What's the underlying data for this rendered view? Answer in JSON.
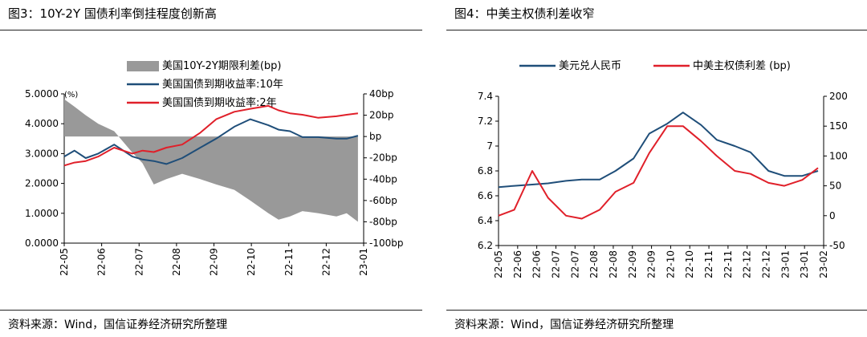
{
  "figures": [
    {
      "title": "图3：10Y-2Y 国债利率倒挂程度创新高",
      "source": "资料来源：Wind，国信证券经济研究所整理"
    },
    {
      "title": "图4：中美主权债利差收窄",
      "source": "资料来源：Wind，国信证券经济研究所整理"
    }
  ],
  "chart_data": [
    {
      "type": "line",
      "title": "图3：10Y-2Y 国债利率倒挂程度创新高",
      "x_categories": [
        "22-05",
        "22-06",
        "22-07",
        "22-08",
        "22-09",
        "22-10",
        "22-11",
        "22-12",
        "23-01"
      ],
      "y_left": {
        "unit": "(%)",
        "range": [
          0,
          5
        ],
        "ticks": [
          "5.0000",
          "4.0000",
          "3.0000",
          "2.0000",
          "1.0000",
          "0.0000"
        ]
      },
      "y_right": {
        "range": [
          -100,
          40
        ],
        "ticks": [
          "40bp",
          "20bp",
          "bp",
          "-20bp",
          "-40bp",
          "-60bp",
          "-80bp",
          "-100bp"
        ]
      },
      "legend_position": "top-center",
      "grid": false,
      "colors": {
        "spread": "#999999",
        "y10": "#1f4e79",
        "y2": "#e0202a"
      },
      "series": [
        {
          "name": "美国10Y-2Y期限利差(bp)",
          "type": "area",
          "axis": "right",
          "x": [
            "22-05",
            "22-05-10",
            "22-05-20",
            "22-06",
            "22-06-15",
            "22-07",
            "22-07-10",
            "22-07-20",
            "22-08",
            "22-08-15",
            "22-09",
            "22-09-15",
            "22-10",
            "22-10-15",
            "22-11",
            "22-11-10",
            "22-11-20",
            "22-12",
            "22-12-15",
            "23-01",
            "23-01-10",
            "23-01-20"
          ],
          "values": [
            35,
            28,
            20,
            12,
            5,
            -15,
            -25,
            -45,
            -40,
            -35,
            -40,
            -45,
            -50,
            -60,
            -72,
            -78,
            -75,
            -70,
            -72,
            -75,
            -72,
            -80
          ]
        },
        {
          "name": "美国国债到期收益率:10年",
          "type": "line",
          "axis": "left",
          "x": [
            "22-05",
            "22-05-10",
            "22-05-20",
            "22-06",
            "22-06-15",
            "22-07",
            "22-07-10",
            "22-07-20",
            "22-08",
            "22-08-15",
            "22-09",
            "22-09-15",
            "22-10",
            "22-10-15",
            "22-11",
            "22-11-10",
            "22-11-20",
            "22-12",
            "22-12-15",
            "23-01",
            "23-01-10",
            "23-01-20"
          ],
          "values": [
            2.9,
            3.1,
            2.85,
            3.0,
            3.3,
            2.9,
            2.8,
            2.75,
            2.65,
            2.85,
            3.2,
            3.5,
            3.9,
            4.15,
            3.95,
            3.8,
            3.75,
            3.55,
            3.55,
            3.5,
            3.5,
            3.6
          ]
        },
        {
          "name": "美国国债到期收益率:2年",
          "type": "line",
          "axis": "left",
          "x": [
            "22-05",
            "22-05-10",
            "22-05-20",
            "22-06",
            "22-06-15",
            "22-07",
            "22-07-10",
            "22-07-20",
            "22-08",
            "22-08-15",
            "22-09",
            "22-09-15",
            "22-10",
            "22-10-15",
            "22-11",
            "22-11-10",
            "22-11-20",
            "22-12",
            "22-12-15",
            "23-01",
            "23-01-10",
            "23-01-20"
          ],
          "values": [
            2.6,
            2.7,
            2.75,
            2.9,
            3.2,
            3.0,
            3.1,
            3.05,
            3.2,
            3.3,
            3.7,
            4.15,
            4.4,
            4.5,
            4.6,
            4.45,
            4.35,
            4.3,
            4.2,
            4.25,
            4.3,
            4.35
          ]
        }
      ]
    },
    {
      "type": "line",
      "title": "图4：中美主权债利差收窄",
      "x_categories": [
        "22-05",
        "22-06",
        "22-06",
        "22-07",
        "22-07",
        "22-08",
        "22-08",
        "22-09",
        "22-09",
        "22-10",
        "22-10",
        "22-11",
        "22-11",
        "22-12",
        "22-12",
        "23-01",
        "23-01",
        "23-02"
      ],
      "y_left": {
        "range": [
          6.2,
          7.4
        ],
        "ticks": [
          "7.4",
          "7.2",
          "7",
          "6.8",
          "6.6",
          "6.4",
          "6.2"
        ]
      },
      "y_right": {
        "range": [
          -50,
          200
        ],
        "ticks": [
          "200",
          "150",
          "100",
          "50",
          "0",
          "-50"
        ]
      },
      "legend_position": "top-center",
      "grid": false,
      "colors": {
        "usdcny": "#1f4e79",
        "spread": "#e0202a"
      },
      "series": [
        {
          "name": "美元兑人民币",
          "axis": "left",
          "x": [
            "22-05",
            "22-05-15",
            "22-06",
            "22-06-15",
            "22-07",
            "22-07-15",
            "22-08",
            "22-08-15",
            "22-09",
            "22-09-15",
            "22-10",
            "22-10-15",
            "22-11",
            "22-11-15",
            "22-12",
            "22-12-15",
            "23-01",
            "23-01-15",
            "23-02",
            "23-02-15"
          ],
          "values": [
            6.67,
            6.68,
            6.69,
            6.7,
            6.72,
            6.73,
            6.73,
            6.8,
            6.9,
            7.1,
            7.18,
            7.27,
            7.17,
            7.05,
            7.0,
            6.95,
            6.8,
            6.76,
            6.76,
            6.8
          ]
        },
        {
          "name": "中美主权债利差 (bp)",
          "axis": "right",
          "x": [
            "22-05",
            "22-05-15",
            "22-06",
            "22-06-15",
            "22-07",
            "22-07-15",
            "22-08",
            "22-08-15",
            "22-09",
            "22-09-15",
            "22-10",
            "22-10-15",
            "22-11",
            "22-11-15",
            "22-12",
            "22-12-15",
            "23-01",
            "23-01-15",
            "23-02",
            "23-02-15"
          ],
          "values": [
            0,
            10,
            75,
            30,
            0,
            -5,
            10,
            40,
            55,
            105,
            150,
            150,
            125,
            100,
            75,
            70,
            55,
            50,
            60,
            80
          ]
        }
      ]
    }
  ]
}
